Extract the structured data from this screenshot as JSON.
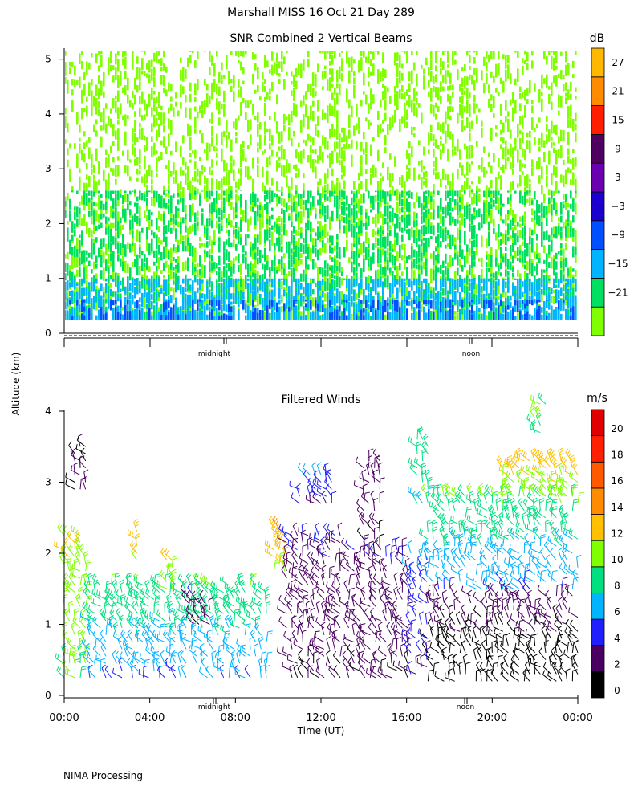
{
  "page": {
    "title": "Marshall MISS   16 Oct 21 Day 289",
    "ylabel_shared": "Altitude (km)",
    "footer": "NIMA Processing"
  },
  "chart_data": [
    {
      "type": "heatmap",
      "title": "SNR Combined 2 Vertical Beams",
      "ylim": [
        0,
        5.2
      ],
      "y_ticks": [
        "0",
        "1",
        "2",
        "3",
        "4",
        "5"
      ],
      "x_markers": [
        "midnight",
        "noon"
      ],
      "colorbar": {
        "unit": "dB",
        "ticks": [
          "27",
          "21",
          "15",
          "9",
          "3",
          "−3",
          "−9",
          "−15",
          "−21"
        ],
        "bins": [
          {
            "value": -21,
            "color": "#80ff00"
          },
          {
            "value": -15,
            "color": "#00e060"
          },
          {
            "value": -9,
            "color": "#00b4ff"
          },
          {
            "value": -3,
            "color": "#0050ff"
          },
          {
            "value": 3,
            "color": "#1c00d0"
          },
          {
            "value": 9,
            "color": "#6a00b0"
          },
          {
            "value": 15,
            "color": "#500060"
          },
          {
            "value": 21,
            "color": "#ff1e00"
          },
          {
            "value": 27,
            "color": "#ff8c00"
          },
          {
            "value": 33,
            "color": "#ffb800"
          }
        ]
      },
      "layers": [
        {
          "snr_db": -21,
          "low_km": 0.25,
          "high_km": 5.15,
          "coverage": 0.5
        },
        {
          "snr_db": -15,
          "low_km": 0.25,
          "high_km": 2.6,
          "coverage": 0.55
        },
        {
          "snr_db": -9,
          "low_km": 0.25,
          "high_km": 1.0,
          "coverage": 0.75
        },
        {
          "snr_db": -3,
          "low_km": 0.25,
          "high_km": 0.6,
          "coverage": 0.35
        }
      ]
    },
    {
      "type": "scatter",
      "title": "Filtered Winds",
      "xlabel": "Time (UT)",
      "ylim": [
        0,
        4
      ],
      "y_ticks": [
        "0",
        "1",
        "2",
        "3",
        "4"
      ],
      "x_ticks": [
        "00:00",
        "04:00",
        "08:00",
        "12:00",
        "16:00",
        "20:00",
        "00:00"
      ],
      "x_markers": [
        "midnight",
        "noon"
      ],
      "colorbar": {
        "unit": "m/s",
        "ticks": [
          "20",
          "18",
          "16",
          "14",
          "12",
          "10",
          "8",
          "6",
          "4",
          "2",
          "0"
        ],
        "bins": [
          {
            "value": 0,
            "color": "#000000"
          },
          {
            "value": 2,
            "color": "#4a0060"
          },
          {
            "value": 4,
            "color": "#2020ff"
          },
          {
            "value": 6,
            "color": "#00b4ff"
          },
          {
            "value": 8,
            "color": "#00e080"
          },
          {
            "value": 10,
            "color": "#80ff00"
          },
          {
            "value": 12,
            "color": "#ffc000"
          },
          {
            "value": 14,
            "color": "#ff8c00"
          },
          {
            "value": 16,
            "color": "#ff5a00"
          },
          {
            "value": 18,
            "color": "#ff2000"
          },
          {
            "value": 20,
            "color": "#e00000"
          }
        ]
      },
      "wind_blocks": [
        {
          "t0": 0.0,
          "t1": 1.2,
          "h0": 0.25,
          "h1": 2.3,
          "speed_low": 10,
          "speed_high": 12
        },
        {
          "t0": 1.2,
          "t1": 9.6,
          "h0": 0.25,
          "h1": 1.6,
          "speed_low": 6,
          "speed_high": 10
        },
        {
          "t0": 0.5,
          "t1": 1.1,
          "h0": 2.8,
          "h1": 3.55,
          "speed_low": 2,
          "speed_high": 2
        },
        {
          "t0": 3.4,
          "t1": 3.6,
          "h0": 1.9,
          "h1": 2.3,
          "speed_low": 12,
          "speed_high": 13
        },
        {
          "t0": 4.8,
          "t1": 5.1,
          "h0": 1.5,
          "h1": 1.95,
          "speed_low": 12,
          "speed_high": 12
        },
        {
          "t0": 5.8,
          "t1": 7.0,
          "h0": 1.0,
          "h1": 1.4,
          "speed_low": 2,
          "speed_high": 4
        },
        {
          "t0": 9.8,
          "t1": 10.4,
          "h0": 1.75,
          "h1": 2.4,
          "speed_low": 12,
          "speed_high": 14
        },
        {
          "t0": 10.4,
          "t1": 13.0,
          "h0": 0.25,
          "h1": 2.3,
          "speed_low": 2,
          "speed_high": 4
        },
        {
          "t0": 11.0,
          "t1": 12.6,
          "h0": 2.7,
          "h1": 3.15,
          "speed_low": 4,
          "speed_high": 6
        },
        {
          "t0": 13.3,
          "t1": 16.2,
          "h0": 0.25,
          "h1": 2.1,
          "speed_low": 2,
          "speed_high": 4
        },
        {
          "t0": 14.0,
          "t1": 14.8,
          "h0": 2.0,
          "h1": 3.35,
          "speed_low": 2,
          "speed_high": 3
        },
        {
          "t0": 16.2,
          "t1": 17.0,
          "h0": 0.3,
          "h1": 2.0,
          "speed_low": 4,
          "speed_high": 6
        },
        {
          "t0": 16.5,
          "t1": 17.0,
          "h0": 2.7,
          "h1": 3.65,
          "speed_low": 8,
          "speed_high": 9
        },
        {
          "t0": 17.0,
          "t1": 24.0,
          "h0": 1.5,
          "h1": 2.8,
          "speed_low": 6,
          "speed_high": 10
        },
        {
          "t0": 20.5,
          "t1": 24.0,
          "h0": 2.8,
          "h1": 3.3,
          "speed_low": 11,
          "speed_high": 13
        },
        {
          "t0": 22.0,
          "t1": 22.5,
          "h0": 3.7,
          "h1": 4.1,
          "speed_low": 10,
          "speed_high": 10
        },
        {
          "t0": 17.0,
          "t1": 24.0,
          "h0": 0.2,
          "h1": 1.4,
          "speed_low": 0,
          "speed_high": 3
        }
      ]
    }
  ]
}
